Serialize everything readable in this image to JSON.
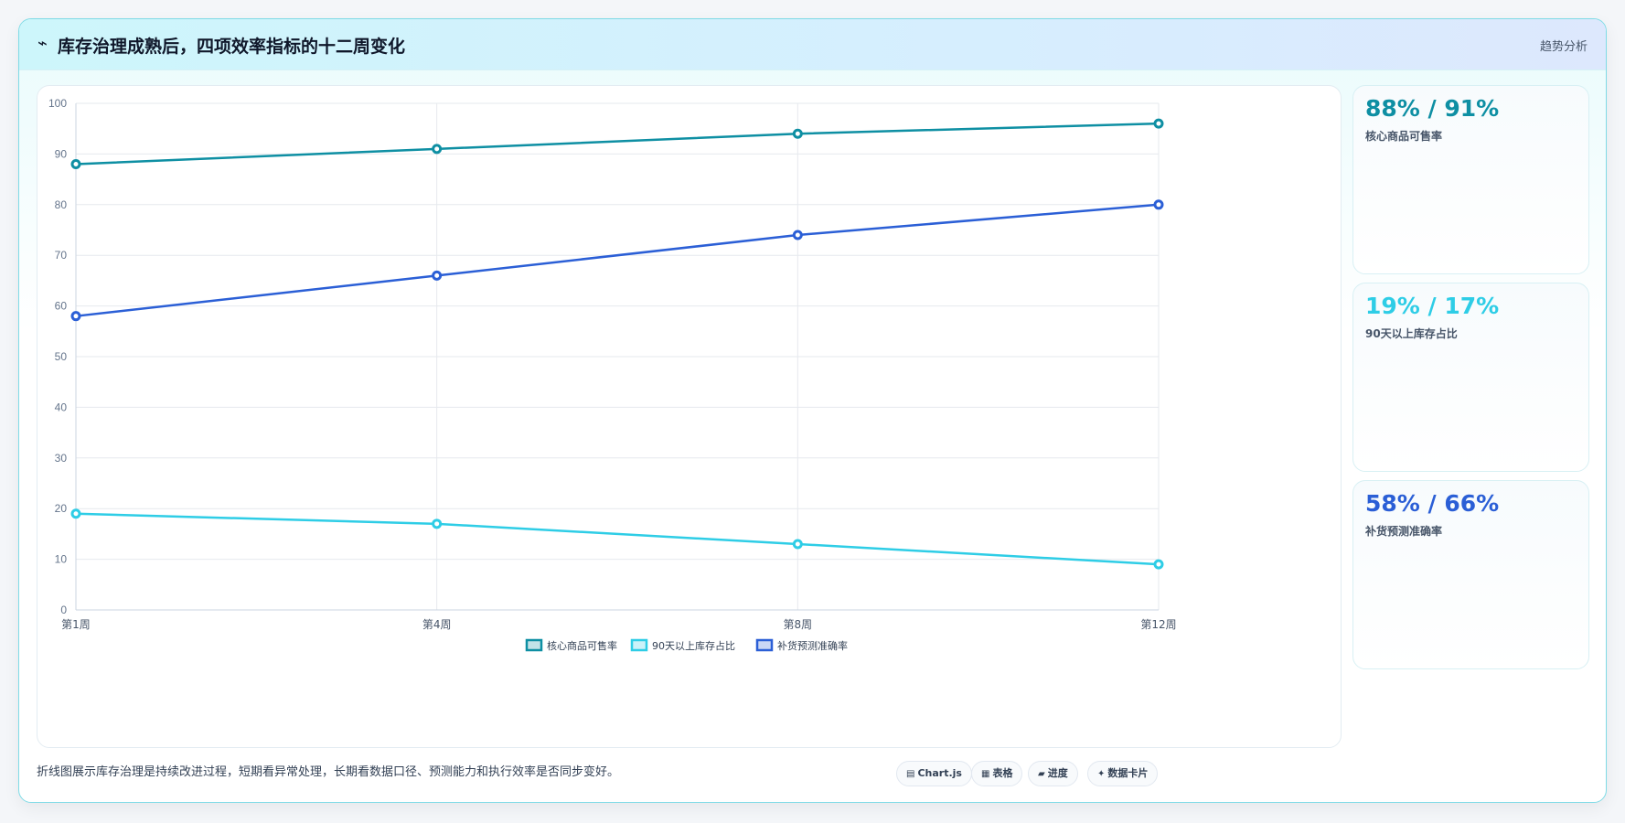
{
  "header": {
    "icon": "⌁",
    "title": "库存治理成熟后，四项效率指标的十二周变化",
    "tag": "趋势分析"
  },
  "chart_data": {
    "type": "line",
    "categories": [
      "第1周",
      "第4周",
      "第8周",
      "第12周"
    ],
    "ylim": [
      0,
      100
    ],
    "yticks": [
      0,
      10,
      20,
      30,
      40,
      50,
      60,
      70,
      80,
      90,
      100
    ],
    "grid": true,
    "legend_position": "bottom",
    "series": [
      {
        "name": "核心商品可售率",
        "values": [
          88,
          91,
          94,
          96
        ],
        "color": "#0e8fa3"
      },
      {
        "name": "90天以上库存占比",
        "values": [
          19,
          17,
          13,
          9
        ],
        "color": "#2ecde6"
      },
      {
        "name": "补货预测准确率",
        "values": [
          58,
          66,
          74,
          80
        ],
        "color": "#2b5fd6"
      }
    ]
  },
  "kpis": [
    {
      "value": "88% / 91%",
      "label": "核心商品可售率",
      "color": "#0e8fa3"
    },
    {
      "value": "19% / 17%",
      "label": "90天以上库存占比",
      "color": "#2ecde6"
    },
    {
      "value": "58% / 66%",
      "label": "补货预测准确率",
      "color": "#2b5fd6"
    }
  ],
  "footnote": "折线图展示库存治理是持续改进过程，短期看异常处理，长期看数据口径、预测能力和执行效率是否同步变好。",
  "chips": [
    {
      "icon": "▤",
      "label": "Chart.js"
    },
    {
      "icon": "▦",
      "label": "表格"
    },
    {
      "icon": "▰",
      "label": "进度"
    },
    {
      "icon": "✦",
      "label": "数据卡片"
    }
  ]
}
